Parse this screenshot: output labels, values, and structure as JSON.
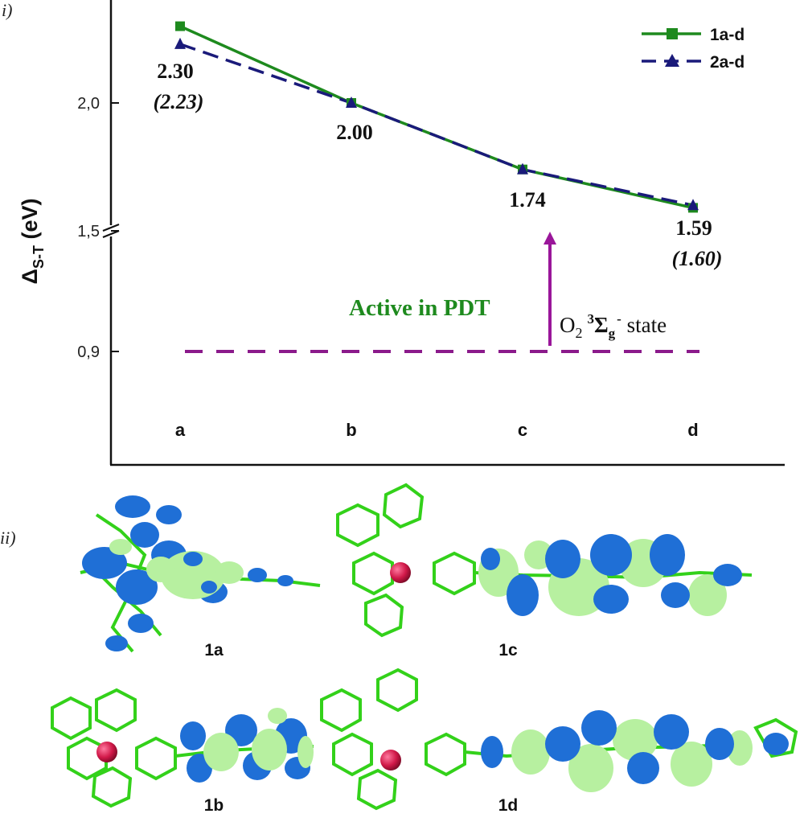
{
  "panel_i_label": "i)",
  "panel_ii_label": "ii)",
  "chart_data": {
    "type": "line",
    "categories": [
      "a",
      "b",
      "c",
      "d"
    ],
    "ylabel_main": "Δ",
    "ylabel_sub": "S-T",
    "ylabel_unit": " (eV)",
    "yticks": [
      {
        "value": 0.9,
        "label": "0,9"
      },
      {
        "value": 1.5,
        "label": "1,5"
      },
      {
        "value": 2.0,
        "label": "2,0"
      }
    ],
    "axis_break_at": 1.5,
    "series": [
      {
        "name": "1a-d",
        "values": [
          2.3,
          2.0,
          1.74,
          1.59
        ],
        "color": "#1e8a1e",
        "marker": "square",
        "dash": "solid"
      },
      {
        "name": "2a-d",
        "values": [
          2.23,
          2.0,
          1.74,
          1.6
        ],
        "color": "#1a1a7a",
        "marker": "triangle",
        "dash": "dashed"
      }
    ],
    "data_labels": [
      {
        "index": 0,
        "text": "2.30",
        "italic_text": "(2.23)"
      },
      {
        "index": 1,
        "text": "2.00",
        "italic_text": ""
      },
      {
        "index": 2,
        "text": "1.74",
        "italic_text": ""
      },
      {
        "index": 3,
        "text": "1.59",
        "italic_text": "(1.60)"
      }
    ],
    "reference_line": {
      "value": 0.9,
      "color": "#8b1a8b",
      "label_prefix": "O",
      "label_sub": "2",
      "label_sup": "3",
      "label_sigma": "Σ",
      "label_sigma_sub": "g",
      "label_sigma_sup": "-",
      "label_suffix": " state"
    },
    "annotation_active": {
      "text": "Active in PDT",
      "color": "#1e8a1e"
    },
    "arrow_color": "#9a169a"
  },
  "molecules": [
    {
      "id": "1a",
      "label": "1a"
    },
    {
      "id": "1c",
      "label": "1c"
    },
    {
      "id": "1b",
      "label": "1b"
    },
    {
      "id": "1d",
      "label": "1d"
    }
  ],
  "colors": {
    "lobe_blue": "#1f6fd6",
    "lobe_green": "#b7f0a0",
    "bond_green": "#33d11a",
    "metal": "#d01848"
  }
}
